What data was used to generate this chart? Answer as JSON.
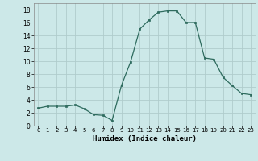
{
  "x": [
    0,
    1,
    2,
    3,
    4,
    5,
    6,
    7,
    8,
    9,
    10,
    11,
    12,
    13,
    14,
    15,
    16,
    17,
    18,
    19,
    20,
    21,
    22,
    23
  ],
  "y": [
    2.7,
    3.0,
    3.0,
    3.0,
    3.2,
    2.6,
    1.7,
    1.6,
    0.8,
    6.2,
    9.9,
    15.0,
    16.4,
    17.6,
    17.8,
    17.8,
    16.0,
    16.0,
    10.5,
    10.3,
    7.5,
    6.2,
    5.0,
    4.8
  ],
  "line_color": "#2e6b5e",
  "marker": "s",
  "marker_size": 2.0,
  "bg_color": "#cce8e8",
  "grid_color": "#b0cccc",
  "xlabel": "Humidex (Indice chaleur)",
  "xlim": [
    -0.5,
    23.5
  ],
  "ylim": [
    0,
    19
  ],
  "yticks": [
    0,
    2,
    4,
    6,
    8,
    10,
    12,
    14,
    16,
    18
  ],
  "xticks": [
    0,
    1,
    2,
    3,
    4,
    5,
    6,
    7,
    8,
    9,
    10,
    11,
    12,
    13,
    14,
    15,
    16,
    17,
    18,
    19,
    20,
    21,
    22,
    23
  ]
}
